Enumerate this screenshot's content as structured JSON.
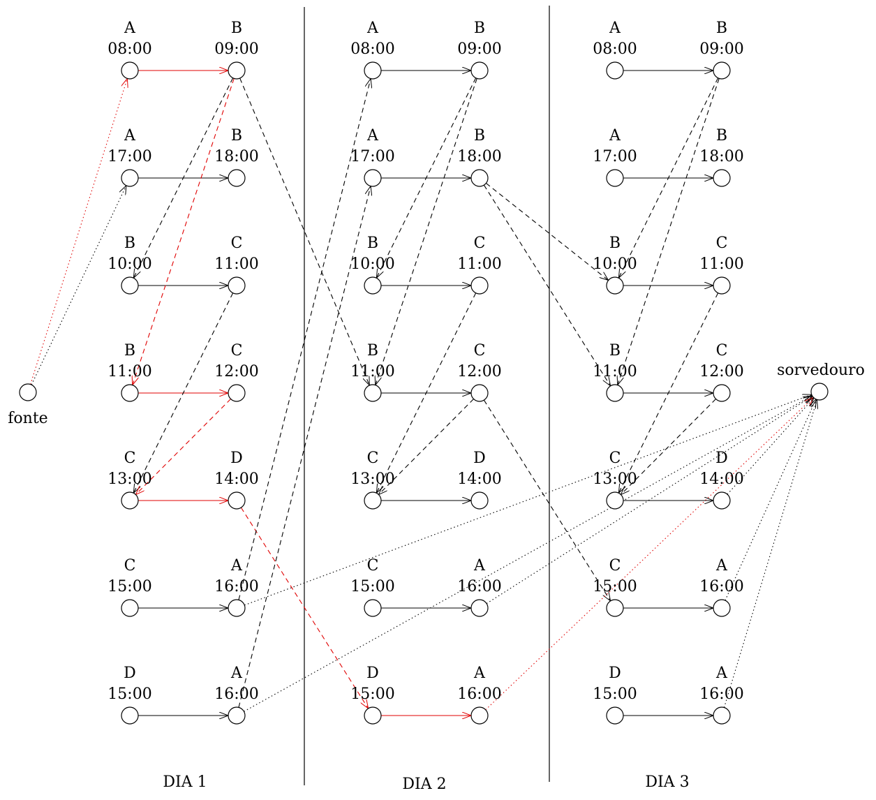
{
  "colors": {
    "normal": "#000000",
    "highlight": "#e00000"
  },
  "days": [
    {
      "label": "DIA 1"
    },
    {
      "label": "DIA 2"
    },
    {
      "label": "DIA 3"
    }
  ],
  "legs": [
    {
      "from": "A",
      "dep": "08:00",
      "to": "B",
      "arr": "09:00"
    },
    {
      "from": "A",
      "dep": "17:00",
      "to": "B",
      "arr": "18:00"
    },
    {
      "from": "B",
      "dep": "10:00",
      "to": "C",
      "arr": "11:00"
    },
    {
      "from": "B",
      "dep": "11:00",
      "to": "C",
      "arr": "12:00"
    },
    {
      "from": "C",
      "dep": "13:00",
      "to": "D",
      "arr": "14:00"
    },
    {
      "from": "C",
      "dep": "15:00",
      "to": "A",
      "arr": "16:00"
    },
    {
      "from": "D",
      "dep": "15:00",
      "to": "A",
      "arr": "16:00"
    }
  ],
  "source": {
    "label": "fonte"
  },
  "sink": {
    "label": "sorvedouro"
  },
  "flight_arcs": {
    "highlighted": [
      {
        "day": 1,
        "leg": 1
      },
      {
        "day": 1,
        "leg": 4
      },
      {
        "day": 1,
        "leg": 5
      },
      {
        "day": 2,
        "leg": 7
      }
    ]
  },
  "connection_arcs": [
    {
      "from": [
        1,
        1,
        "arr"
      ],
      "to": [
        1,
        3,
        "dep"
      ],
      "highlight": false
    },
    {
      "from": [
        1,
        1,
        "arr"
      ],
      "to": [
        1,
        4,
        "dep"
      ],
      "highlight": true
    },
    {
      "from": [
        1,
        1,
        "arr"
      ],
      "to": [
        2,
        4,
        "dep"
      ],
      "highlight": false
    },
    {
      "from": [
        1,
        3,
        "arr"
      ],
      "to": [
        1,
        5,
        "dep"
      ],
      "highlight": false
    },
    {
      "from": [
        1,
        4,
        "arr"
      ],
      "to": [
        1,
        5,
        "dep"
      ],
      "highlight": true
    },
    {
      "from": [
        1,
        5,
        "arr"
      ],
      "to": [
        2,
        7,
        "dep"
      ],
      "highlight": true
    },
    {
      "from": [
        1,
        6,
        "arr"
      ],
      "to": [
        2,
        1,
        "dep"
      ],
      "highlight": false
    },
    {
      "from": [
        1,
        7,
        "arr"
      ],
      "to": [
        2,
        2,
        "dep"
      ],
      "highlight": false
    },
    {
      "from": [
        2,
        1,
        "arr"
      ],
      "to": [
        2,
        3,
        "dep"
      ],
      "highlight": false
    },
    {
      "from": [
        2,
        1,
        "arr"
      ],
      "to": [
        2,
        4,
        "dep"
      ],
      "highlight": false
    },
    {
      "from": [
        2,
        2,
        "arr"
      ],
      "to": [
        3,
        3,
        "dep"
      ],
      "highlight": false
    },
    {
      "from": [
        2,
        2,
        "arr"
      ],
      "to": [
        3,
        4,
        "dep"
      ],
      "highlight": false
    },
    {
      "from": [
        2,
        3,
        "arr"
      ],
      "to": [
        2,
        5,
        "dep"
      ],
      "highlight": false
    },
    {
      "from": [
        2,
        4,
        "arr"
      ],
      "to": [
        2,
        5,
        "dep"
      ],
      "highlight": false
    },
    {
      "from": [
        2,
        4,
        "arr"
      ],
      "to": [
        3,
        6,
        "dep"
      ],
      "highlight": false
    },
    {
      "from": [
        3,
        1,
        "arr"
      ],
      "to": [
        3,
        3,
        "dep"
      ],
      "highlight": false
    },
    {
      "from": [
        3,
        1,
        "arr"
      ],
      "to": [
        3,
        4,
        "dep"
      ],
      "highlight": false
    },
    {
      "from": [
        3,
        3,
        "arr"
      ],
      "to": [
        3,
        5,
        "dep"
      ],
      "highlight": false
    },
    {
      "from": [
        3,
        4,
        "arr"
      ],
      "to": [
        3,
        5,
        "dep"
      ],
      "highlight": false
    }
  ],
  "source_arcs": [
    {
      "to": [
        1,
        1,
        "dep"
      ],
      "highlight": true
    },
    {
      "to": [
        1,
        2,
        "dep"
      ],
      "highlight": false
    }
  ],
  "sink_arcs": [
    {
      "from": [
        1,
        6,
        "arr"
      ],
      "highlight": false
    },
    {
      "from": [
        1,
        7,
        "arr"
      ],
      "highlight": false
    },
    {
      "from": [
        2,
        6,
        "arr"
      ],
      "highlight": false
    },
    {
      "from": [
        2,
        7,
        "arr"
      ],
      "highlight": true
    },
    {
      "from": [
        3,
        5,
        "arr"
      ],
      "highlight": false
    },
    {
      "from": [
        3,
        6,
        "arr"
      ],
      "highlight": false
    },
    {
      "from": [
        3,
        7,
        "arr"
      ],
      "highlight": false
    }
  ]
}
